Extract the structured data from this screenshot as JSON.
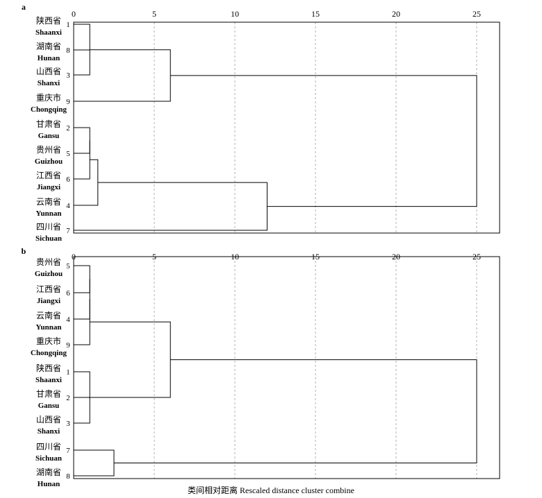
{
  "chart_data": [
    {
      "type": "dendrogram",
      "panel_label": "a",
      "xlim": [
        0,
        26
      ],
      "xticks": [
        0,
        5,
        10,
        15,
        20,
        25
      ],
      "grid": "vertical dashed",
      "leaves": [
        {
          "cn": "陕西省",
          "en": "Shaanxi",
          "id": "1"
        },
        {
          "cn": "湖南省",
          "en": "Hunan",
          "id": "8"
        },
        {
          "cn": "山西省",
          "en": "Shanxi",
          "id": "3"
        },
        {
          "cn": "重庆市",
          "en": "Chongqing",
          "id": "9"
        },
        {
          "cn": "甘肃省",
          "en": "Gansu",
          "id": "2"
        },
        {
          "cn": "贵州省",
          "en": "Guizhou",
          "id": "5"
        },
        {
          "cn": "江西省",
          "en": "Jiangxi",
          "id": "6"
        },
        {
          "cn": "云南省",
          "en": "Yunnan",
          "id": "4"
        },
        {
          "cn": "四川省",
          "en": "Sichuan",
          "id": "7"
        }
      ],
      "merges": [
        {
          "a": "L0",
          "b": "L2",
          "dist": 1
        },
        {
          "a": "L1",
          "b": "M0",
          "dist": 1
        },
        {
          "a": "M1",
          "b": "L3",
          "dist": 6
        },
        {
          "a": "L4",
          "b": "L5",
          "dist": 1
        },
        {
          "a": "M3",
          "b": "L6",
          "dist": 1
        },
        {
          "a": "M4",
          "b": "L7",
          "dist": 1.5
        },
        {
          "a": "M5",
          "b": "L8",
          "dist": 12
        },
        {
          "a": "M2",
          "b": "M6",
          "dist": 25
        }
      ]
    },
    {
      "type": "dendrogram",
      "panel_label": "b",
      "xlim": [
        0,
        26
      ],
      "xticks": [
        0,
        5,
        10,
        15,
        20,
        25
      ],
      "grid": "vertical dashed",
      "leaves": [
        {
          "cn": "贵州省",
          "en": "Guizhou",
          "id": "5"
        },
        {
          "cn": "江西省",
          "en": "Jiangxi",
          "id": "6"
        },
        {
          "cn": "云南省",
          "en": "Yunnan",
          "id": "4"
        },
        {
          "cn": "重庆市",
          "en": "Chongqing",
          "id": "9"
        },
        {
          "cn": "陕西省",
          "en": "Shaanxi",
          "id": "1"
        },
        {
          "cn": "甘肃省",
          "en": "Gansu",
          "id": "2"
        },
        {
          "cn": "山西省",
          "en": "Shanxi",
          "id": "3"
        },
        {
          "cn": "四川省",
          "en": "Sichuan",
          "id": "7"
        },
        {
          "cn": "湖南省",
          "en": "Hunan",
          "id": "8"
        }
      ],
      "merges": [
        {
          "a": "L0",
          "b": "L1",
          "dist": 1
        },
        {
          "a": "M0",
          "b": "L2",
          "dist": 1
        },
        {
          "a": "M1",
          "b": "L3",
          "dist": 1
        },
        {
          "a": "L4",
          "b": "L6",
          "dist": 1
        },
        {
          "a": "L5",
          "b": "M3",
          "dist": 1
        },
        {
          "a": "M2",
          "b": "M4",
          "dist": 6
        },
        {
          "a": "L7",
          "b": "L8",
          "dist": 2.5
        },
        {
          "a": "M5",
          "b": "M6",
          "dist": 25
        }
      ]
    }
  ],
  "xlabel": "类间相对距离 Rescaled distance cluster combine",
  "colors": {
    "line": "#000000",
    "grid": "#b0b0b0",
    "frame": "#000000"
  }
}
